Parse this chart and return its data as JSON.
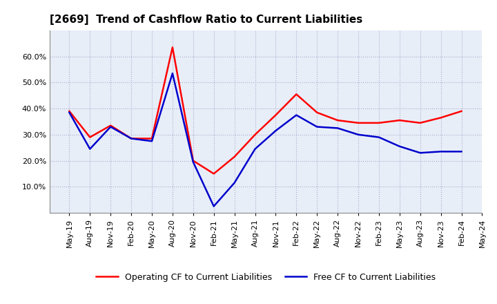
{
  "title": "[2669]  Trend of Cashflow Ratio to Current Liabilities",
  "x_labels": [
    "May-19",
    "Aug-19",
    "Nov-19",
    "Feb-20",
    "May-20",
    "Aug-20",
    "Nov-20",
    "Feb-21",
    "May-21",
    "Aug-21",
    "Nov-21",
    "Feb-22",
    "May-22",
    "Aug-22",
    "Nov-22",
    "Feb-23",
    "May-23",
    "Aug-23",
    "Nov-23",
    "Feb-24",
    "May-24"
  ],
  "operating_cf": [
    0.39,
    0.29,
    0.335,
    0.285,
    0.285,
    0.635,
    0.2,
    0.15,
    0.215,
    0.3,
    0.375,
    0.455,
    0.385,
    0.355,
    0.345,
    0.345,
    0.355,
    0.345,
    0.365,
    0.39,
    null
  ],
  "free_cf": [
    0.385,
    0.245,
    0.33,
    0.285,
    0.275,
    0.535,
    0.195,
    0.025,
    0.115,
    0.245,
    0.315,
    0.375,
    0.33,
    0.325,
    0.3,
    0.29,
    0.255,
    0.23,
    0.235,
    0.235,
    null
  ],
  "ylim": [
    0.0,
    0.7
  ],
  "yticks": [
    0.1,
    0.2,
    0.3,
    0.4,
    0.5,
    0.6
  ],
  "operating_color": "#FF0000",
  "free_color": "#0000CC",
  "background_color": "#FFFFFF",
  "plot_bg_color": "#E8EEF8",
  "grid_color": "#AAAACC",
  "title_fontsize": 11,
  "tick_fontsize": 8,
  "legend_labels": [
    "Operating CF to Current Liabilities",
    "Free CF to Current Liabilities"
  ]
}
